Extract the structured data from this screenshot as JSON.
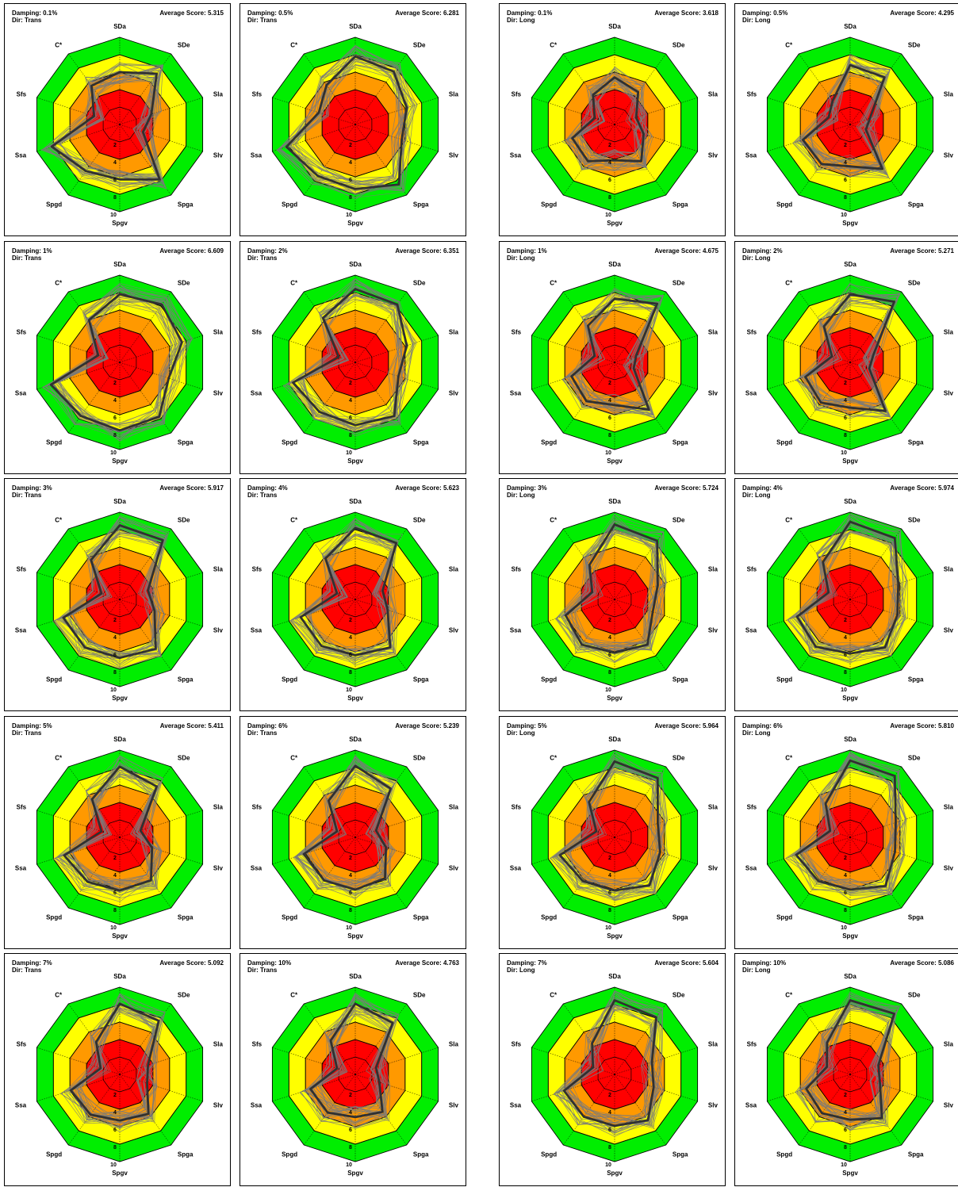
{
  "axes": [
    "SDa",
    "SDe",
    "Sla",
    "Slv",
    "Spga",
    "Spgv",
    "Spgd",
    "Ssa",
    "Sfs",
    "C*"
  ],
  "ring_labels": [
    "2",
    "4",
    "6",
    "8",
    "10"
  ],
  "labels": {
    "damping_prefix": "Damping: ",
    "dir_prefix": "Dir: ",
    "score_prefix": "Average Score: "
  },
  "colors": {
    "red": "#ff0000",
    "orange": "#ff9900",
    "yellow": "#ffff00",
    "green": "#00ee00",
    "series": "#7a7a7a",
    "mean": "#303030"
  },
  "chart_data": [
    {
      "type": "radar",
      "damping": "0.1%",
      "dir": "Trans",
      "average_score": "5.315",
      "mean_profile": [
        6,
        7.2,
        3.8,
        2.8,
        7.8,
        6.3,
        6.6,
        8.2,
        3.1,
        5.5
      ]
    },
    {
      "type": "radar",
      "damping": "0.5%",
      "dir": "Trans",
      "average_score": "6.281",
      "mean_profile": [
        7.8,
        7.5,
        6.2,
        5.6,
        8.5,
        7.4,
        7.3,
        8.3,
        4.4,
        5.6
      ]
    },
    {
      "type": "radar",
      "damping": "0.1%",
      "dir": "Long",
      "average_score": "3.618",
      "mean_profile": [
        5.4,
        4.6,
        2.6,
        3.5,
        5.2,
        4.1,
        5.2,
        5.1,
        2.4,
        4.2
      ]
    },
    {
      "type": "radar",
      "damping": "0.5%",
      "dir": "Long",
      "average_score": "4.295",
      "mean_profile": [
        6.8,
        6.7,
        2.4,
        1.9,
        6.3,
        4.8,
        5.6,
        5.7,
        2.6,
        3.4
      ]
    },
    {
      "type": "radar",
      "damping": "1%",
      "dir": "Trans",
      "average_score": "6.609",
      "mean_profile": [
        7.8,
        8.2,
        7.5,
        5.9,
        7.7,
        7.8,
        7.6,
        8.3,
        2.6,
        6
      ]
    },
    {
      "type": "radar",
      "damping": "2%",
      "dir": "Trans",
      "average_score": "6.351",
      "mean_profile": [
        8.4,
        8.2,
        6.2,
        5.2,
        7.6,
        7.2,
        7,
        7.5,
        2,
        6.3
      ]
    },
    {
      "type": "radar",
      "damping": "1%",
      "dir": "Long",
      "average_score": "4.675",
      "mean_profile": [
        7.3,
        8.3,
        2.6,
        2.3,
        6.7,
        4.9,
        5.5,
        5.2,
        2.4,
        5.2
      ]
    },
    {
      "type": "radar",
      "damping": "2%",
      "dir": "Long",
      "average_score": "5.271",
      "mean_profile": [
        7.8,
        8.6,
        2.8,
        2.3,
        6.9,
        5.2,
        5.7,
        5.4,
        2.2,
        5.1
      ]
    },
    {
      "type": "radar",
      "damping": "3%",
      "dir": "Trans",
      "average_score": "5.917",
      "mean_profile": [
        8.5,
        8.4,
        3.4,
        4.2,
        7,
        6.7,
        6.8,
        6.8,
        2.2,
        5.6
      ]
    },
    {
      "type": "radar",
      "damping": "4%",
      "dir": "Trans",
      "average_score": "5.623",
      "mean_profile": [
        8.2,
        8,
        3.3,
        3.9,
        6.8,
        6.4,
        6.6,
        6.6,
        2.2,
        5.8
      ]
    },
    {
      "type": "radar",
      "damping": "3%",
      "dir": "Long",
      "average_score": "5.724",
      "mean_profile": [
        8.6,
        8.3,
        5.2,
        4.6,
        6.4,
        6.1,
        6.4,
        5.9,
        2.7,
        4.9
      ]
    },
    {
      "type": "radar",
      "damping": "4%",
      "dir": "Long",
      "average_score": "5.974",
      "mean_profile": [
        8.9,
        8.7,
        5.8,
        5.7,
        6.8,
        6.2,
        6.7,
        6.4,
        2.6,
        5.3
      ]
    },
    {
      "type": "radar",
      "damping": "5%",
      "dir": "Trans",
      "average_score": "5.411",
      "mean_profile": [
        8.1,
        7.2,
        2.5,
        3.9,
        6.1,
        6.1,
        6.3,
        6.7,
        2.2,
        5.4
      ]
    },
    {
      "type": "radar",
      "damping": "6%",
      "dir": "Trans",
      "average_score": "5.239",
      "mean_profile": [
        8.2,
        6.9,
        2.5,
        3.7,
        5.8,
        6,
        6.1,
        6.2,
        2.2,
        5.2
      ]
    },
    {
      "type": "radar",
      "damping": "5%",
      "dir": "Long",
      "average_score": "5.964",
      "mean_profile": [
        8.7,
        8.4,
        5.2,
        5.5,
        6.8,
        6.1,
        6.2,
        6.6,
        2.2,
        5
      ]
    },
    {
      "type": "radar",
      "damping": "6%",
      "dir": "Long",
      "average_score": "5.810",
      "mean_profile": [
        8.8,
        8.7,
        5.5,
        5.4,
        6.9,
        6,
        6.2,
        6.5,
        2.4,
        4.8
      ]
    },
    {
      "type": "radar",
      "damping": "7%",
      "dir": "Trans",
      "average_score": "5.092",
      "mean_profile": [
        8.1,
        7.6,
        3.4,
        3.3,
        5.6,
        5.3,
        5.7,
        5.9,
        2.3,
        4.6
      ]
    },
    {
      "type": "radar",
      "damping": "10%",
      "dir": "Trans",
      "average_score": "4.763",
      "mean_profile": [
        8.1,
        7.3,
        2.5,
        2.9,
        5.3,
        4.9,
        5.4,
        5.4,
        2.2,
        4.8
      ]
    },
    {
      "type": "radar",
      "damping": "7%",
      "dir": "Long",
      "average_score": "5.604",
      "mean_profile": [
        8.5,
        8.1,
        4.5,
        4.7,
        6.5,
        5.9,
        6,
        6.1,
        2.6,
        4.4
      ]
    },
    {
      "type": "radar",
      "damping": "10%",
      "dir": "Long",
      "average_score": "5.086",
      "mean_profile": [
        8.5,
        8.6,
        3.4,
        3.6,
        6.2,
        5.2,
        5.5,
        5.3,
        2.8,
        4.5
      ]
    }
  ]
}
